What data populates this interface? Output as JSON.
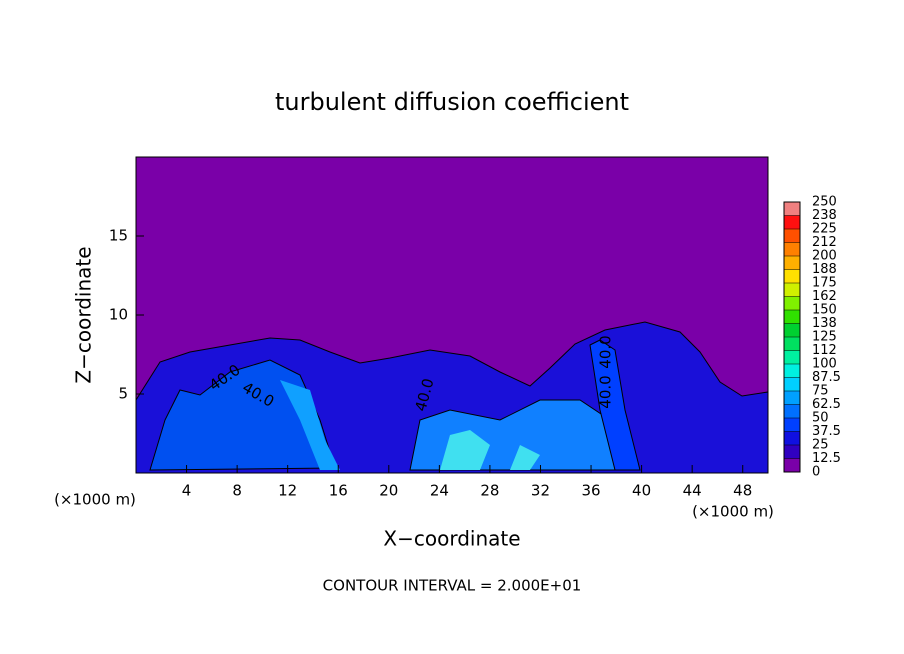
{
  "chart_data": {
    "type": "contour",
    "title": "turbulent diffusion coefficient",
    "xlabel": "X−coordinate",
    "ylabel": "Z−coordinate",
    "x_unit": "(×1000 m)",
    "x_unit_right": "(×1000 m)",
    "footer": "CONTOUR INTERVAL = 2.000E+01",
    "contour_labels": [
      "40.0",
      "40.0",
      "40.0",
      "40.0",
      "40.0"
    ],
    "xlim": [
      0,
      50
    ],
    "xticks": [
      4,
      8,
      12,
      16,
      20,
      24,
      28,
      32,
      36,
      40,
      44,
      48
    ],
    "ylim": [
      0,
      20
    ],
    "yticks": [
      5,
      10,
      15
    ],
    "colorbar": {
      "lim": [
        0,
        250
      ],
      "ticks": [
        0,
        12.5,
        25,
        37.5,
        50,
        62.5,
        75,
        87.5,
        100,
        {
          "value": 112.5,
          "label": "112"
        },
        125,
        {
          "value": 137.5,
          "label": "138"
        },
        150,
        {
          "value": 162.5,
          "label": "162"
        },
        175,
        {
          "value": 187.5,
          "label": "188"
        },
        200,
        {
          "value": 212.5,
          "label": "212"
        },
        225,
        {
          "value": 237.5,
          "label": "238"
        },
        250
      ],
      "colors": [
        "#7a00a8",
        "#3000c0",
        "#1010e0",
        "#0040ff",
        "#0070ff",
        "#00a0ff",
        "#00d0ff",
        "#00f0e0",
        "#00f0a0",
        "#00e060",
        "#00d030",
        "#30e000",
        "#80f000",
        "#d0f000",
        "#ffe000",
        "#ffb000",
        "#ff8000",
        "#ff5000",
        "#ff1010",
        "#f08080"
      ]
    }
  }
}
